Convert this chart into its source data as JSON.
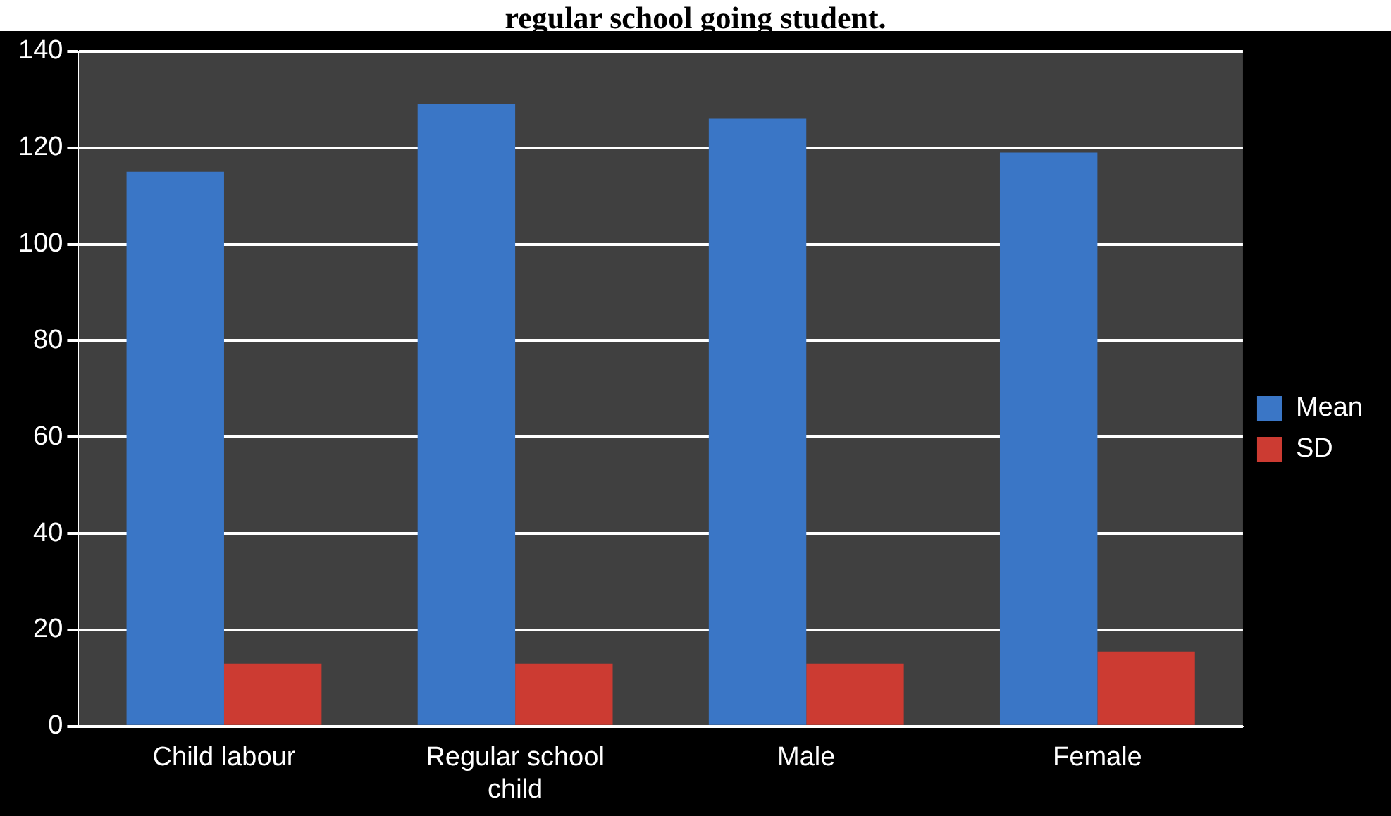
{
  "chart_data": {
    "type": "bar",
    "title": "regular school going student.",
    "categories": [
      "Child labour",
      "Regular school child",
      "Male",
      "Female"
    ],
    "series": [
      {
        "name": "Mean",
        "color": "#3a76c6",
        "values": [
          115,
          129,
          126,
          119
        ]
      },
      {
        "name": "SD",
        "color": "#cc3b32",
        "values": [
          13,
          13,
          13,
          15.5
        ]
      }
    ],
    "ylim": [
      0,
      140
    ],
    "yticks": [
      0,
      20,
      40,
      60,
      80,
      100,
      120,
      140
    ],
    "grid": "y",
    "legend": "right"
  }
}
